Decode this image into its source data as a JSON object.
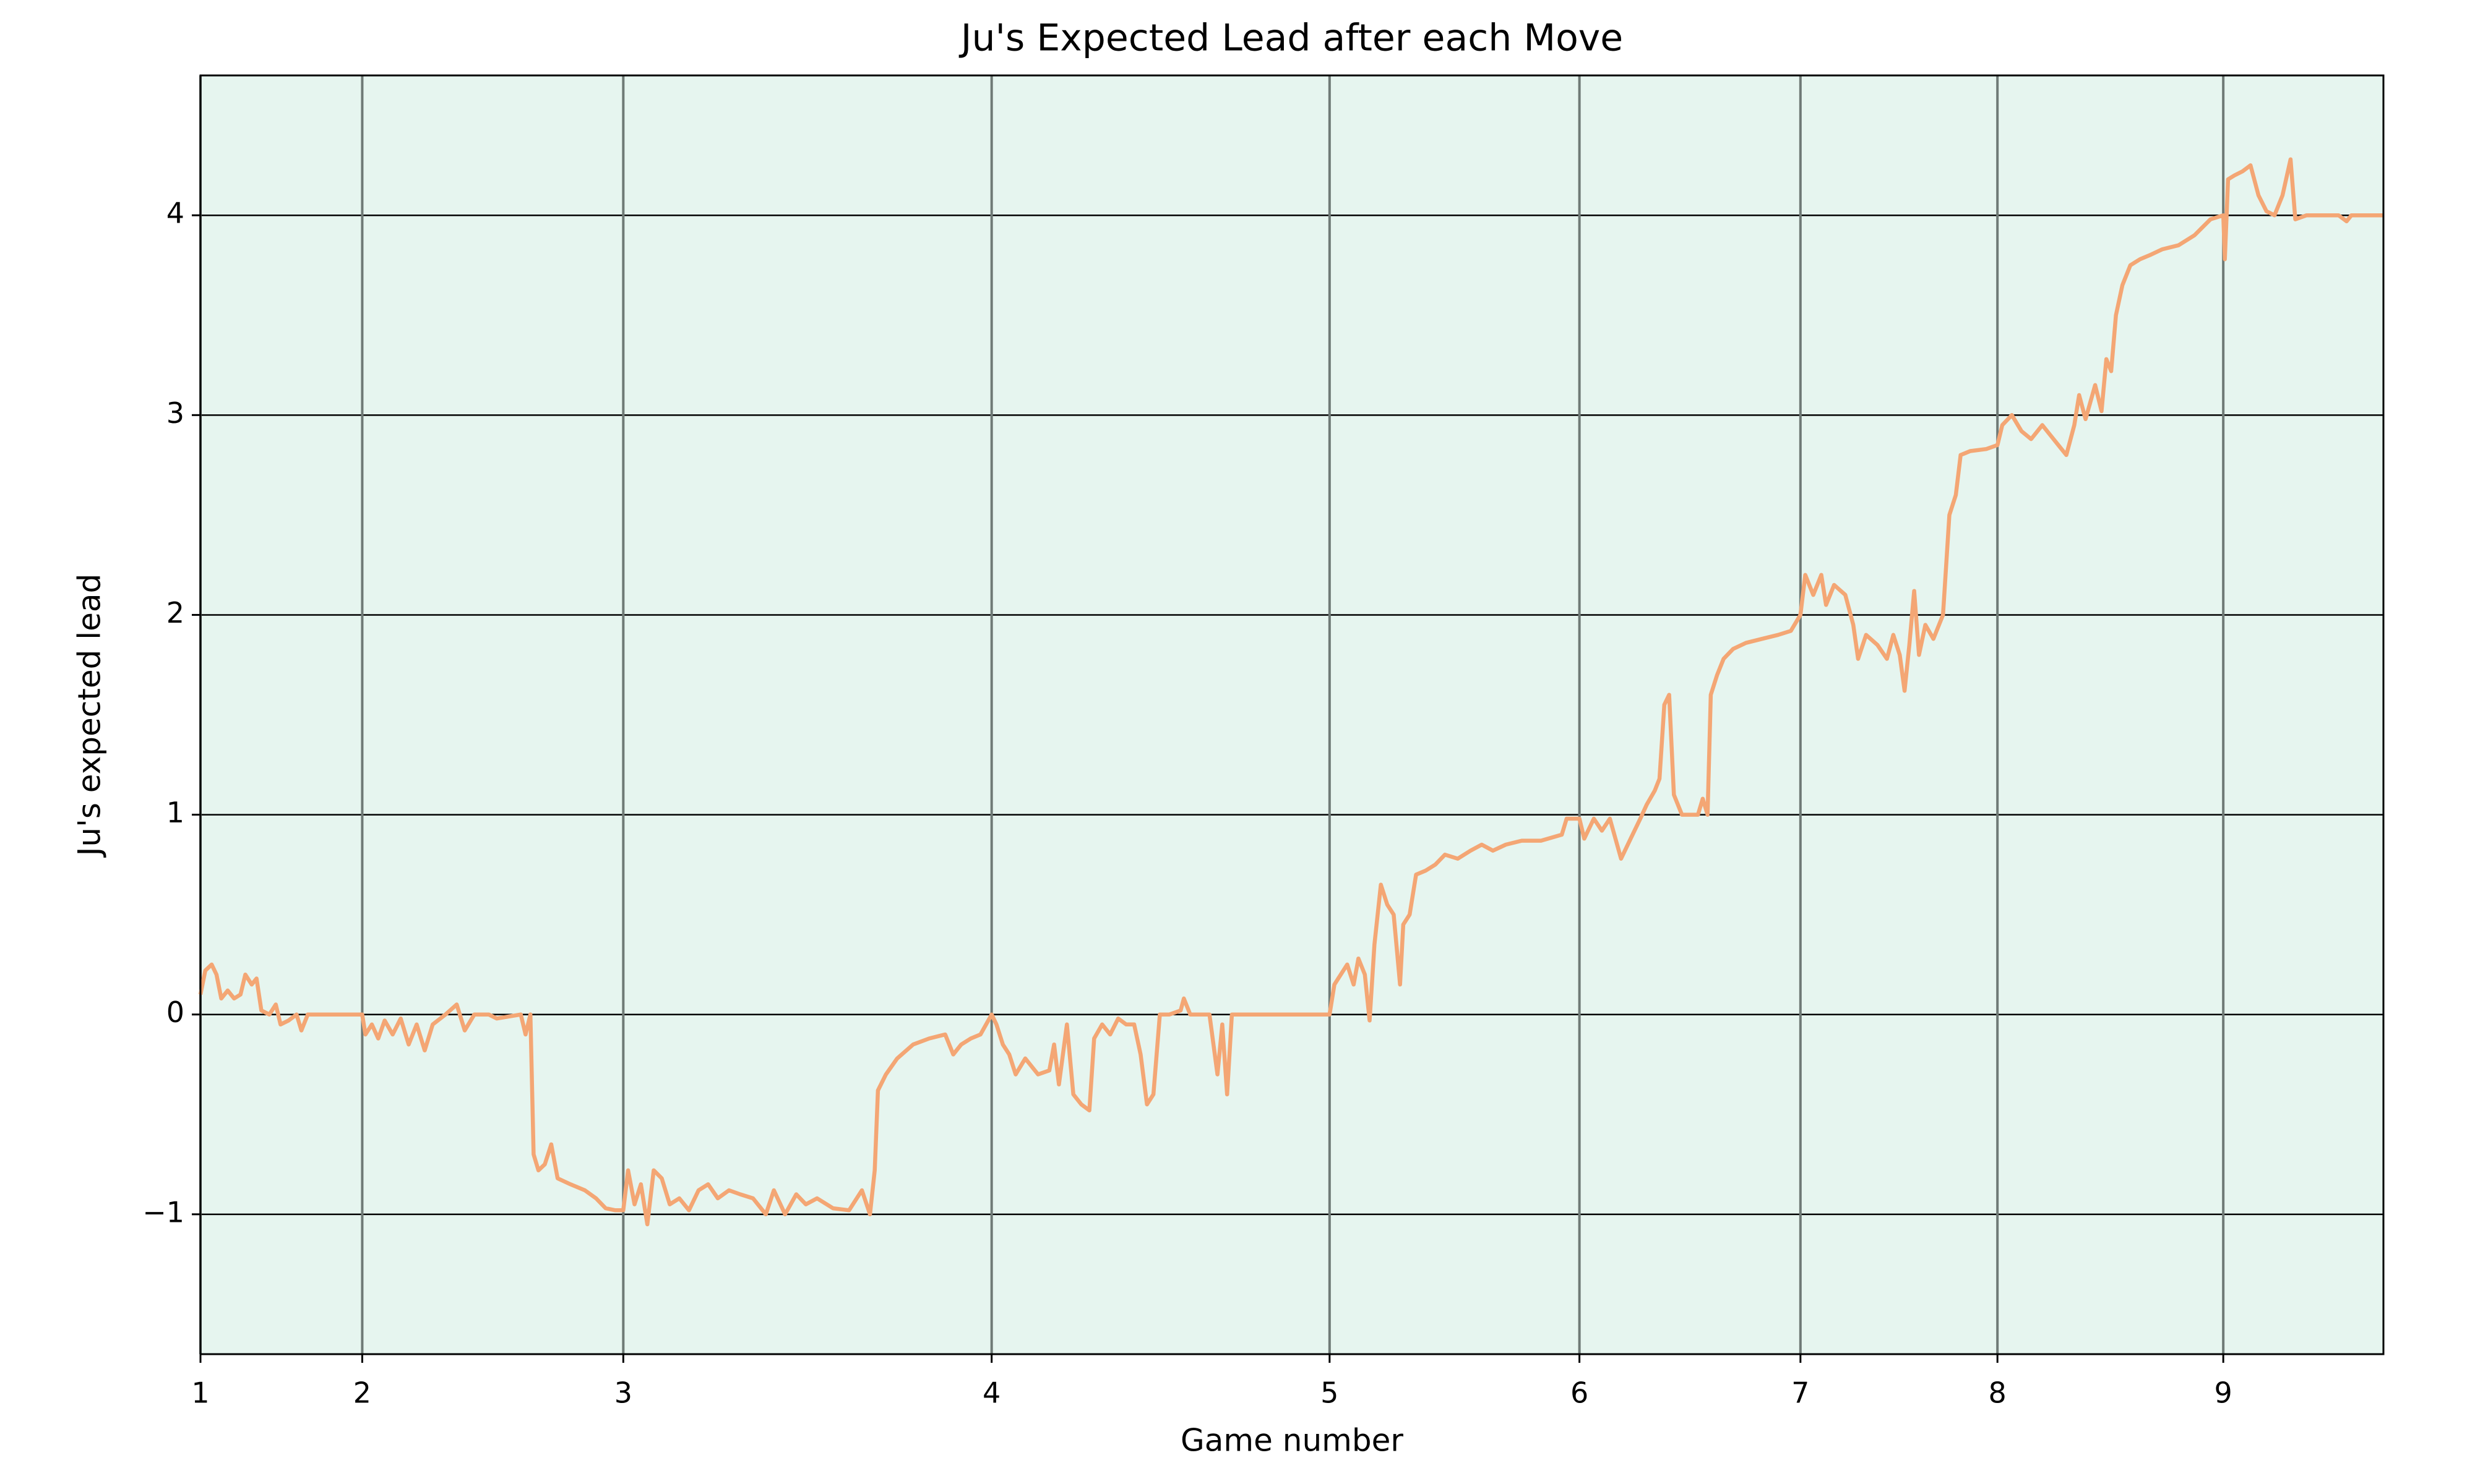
{
  "chart_data": {
    "type": "line",
    "title": "Ju's Expected Lead after each Move",
    "xlabel": "Game number",
    "ylabel": "Ju's expected lead",
    "color": "#f4a674",
    "background": "#e6f5ef",
    "grid": true,
    "xlim": [
      0,
      1363
    ],
    "ylim": [
      -1.7,
      4.7
    ],
    "xticks": [
      {
        "value": 0,
        "label": "1"
      },
      {
        "value": 101,
        "label": "2"
      },
      {
        "value": 264,
        "label": "3"
      },
      {
        "value": 494,
        "label": "4"
      },
      {
        "value": 705,
        "label": "5"
      },
      {
        "value": 861,
        "label": "6"
      },
      {
        "value": 999,
        "label": "7"
      },
      {
        "value": 1122,
        "label": "8"
      },
      {
        "value": 1263,
        "label": "9"
      }
    ],
    "yticks": [
      {
        "value": -1,
        "label": "−1"
      },
      0,
      1,
      2,
      3,
      4
    ],
    "x": [
      0,
      3,
      7,
      10,
      13,
      17,
      21,
      25,
      28,
      32,
      35,
      38,
      43,
      47,
      50,
      55,
      60,
      63,
      67,
      101,
      103,
      107,
      111,
      115,
      120,
      125,
      130,
      135,
      140,
      145,
      153,
      160,
      165,
      171,
      180,
      185,
      200,
      203,
      206,
      208,
      211,
      215,
      219,
      223,
      231,
      240,
      247,
      253,
      259,
      264,
      267,
      271,
      275,
      279,
      283,
      288,
      293,
      299,
      305,
      311,
      317,
      323,
      330,
      337,
      345,
      353,
      358,
      365,
      372,
      378,
      385,
      395,
      405,
      413,
      418,
      421,
      423,
      428,
      435,
      445,
      455,
      465,
      470,
      475,
      481,
      487,
      494,
      497,
      501,
      505,
      509,
      515,
      523,
      530,
      533,
      536,
      541,
      545,
      550,
      555,
      558,
      563,
      568,
      573,
      578,
      583,
      587,
      591,
      595,
      599,
      605,
      612,
      614,
      618,
      630,
      635,
      638,
      641,
      644,
      655,
      705,
      708,
      712,
      716,
      720,
      723,
      727,
      730,
      733,
      737,
      741,
      745,
      749,
      751,
      755,
      759,
      765,
      771,
      777,
      785,
      793,
      800,
      807,
      815,
      825,
      837,
      850,
      853,
      861,
      864,
      870,
      875,
      880,
      887,
      893,
      899,
      903,
      908,
      911,
      914,
      917,
      920,
      925,
      935,
      938,
      941,
      943,
      947,
      951,
      957,
      965,
      975,
      985,
      993,
      999,
      1002,
      1007,
      1012,
      1015,
      1020,
      1027,
      1032,
      1035,
      1040,
      1047,
      1053,
      1057,
      1061,
      1064,
      1067,
      1070,
      1073,
      1077,
      1082,
      1088,
      1092,
      1096,
      1099,
      1105,
      1115,
      1122,
      1125,
      1131,
      1137,
      1143,
      1150,
      1155,
      1160,
      1165,
      1170,
      1173,
      1177,
      1183,
      1187,
      1190,
      1193,
      1196,
      1200,
      1205,
      1211,
      1217,
      1225,
      1235,
      1245,
      1255,
      1263,
      1264,
      1266,
      1270,
      1275,
      1280,
      1285,
      1290,
      1295,
      1300,
      1305,
      1308,
      1315,
      1335,
      1340,
      1343,
      1363
    ],
    "values": [
      0.1,
      0.22,
      0.25,
      0.2,
      0.08,
      0.12,
      0.08,
      0.1,
      0.2,
      0.15,
      0.18,
      0.02,
      0,
      0.05,
      -0.05,
      -0.03,
      0,
      -0.08,
      0,
      0,
      -0.1,
      -0.05,
      -0.12,
      -0.03,
      -0.1,
      -0.02,
      -0.15,
      -0.05,
      -0.18,
      -0.05,
      0,
      0.05,
      -0.08,
      0,
      0,
      -0.02,
      0,
      -0.1,
      0,
      -0.7,
      -0.78,
      -0.75,
      -0.65,
      -0.82,
      -0.85,
      -0.88,
      -0.92,
      -0.97,
      -0.98,
      -0.98,
      -0.78,
      -0.95,
      -0.85,
      -1.05,
      -0.78,
      -0.82,
      -0.95,
      -0.92,
      -0.98,
      -0.88,
      -0.85,
      -0.92,
      -0.88,
      -0.9,
      -0.92,
      -1,
      -0.88,
      -1,
      -0.9,
      -0.95,
      -0.92,
      -0.97,
      -0.98,
      -0.88,
      -1,
      -0.78,
      -0.38,
      -0.3,
      -0.22,
      -0.15,
      -0.12,
      -0.1,
      -0.2,
      -0.15,
      -0.12,
      -0.1,
      0,
      -0.05,
      -0.15,
      -0.2,
      -0.3,
      -0.22,
      -0.3,
      -0.28,
      -0.15,
      -0.35,
      -0.05,
      -0.4,
      -0.45,
      -0.48,
      -0.12,
      -0.05,
      -0.1,
      -0.02,
      -0.05,
      -0.05,
      -0.2,
      -0.45,
      -0.4,
      0,
      0,
      0.02,
      0.08,
      0,
      0,
      -0.3,
      -0.05,
      -0.4,
      0,
      0,
      0,
      0.15,
      0.2,
      0.25,
      0.15,
      0.28,
      0.2,
      -0.03,
      0.35,
      0.65,
      0.55,
      0.5,
      0.15,
      0.45,
      0.5,
      0.7,
      0.72,
      0.75,
      0.8,
      0.78,
      0.82,
      0.85,
      0.82,
      0.85,
      0.87,
      0.87,
      0.9,
      0.98,
      0.98,
      0.88,
      0.98,
      0.92,
      0.98,
      0.78,
      0.88,
      0.98,
      1.05,
      1.12,
      1.18,
      1.55,
      1.6,
      1.1,
      1,
      1,
      1.08,
      1,
      1.6,
      1.7,
      1.78,
      1.83,
      1.86,
      1.88,
      1.9,
      1.92,
      2,
      2.2,
      2.1,
      2.2,
      2.05,
      2.15,
      2.1,
      1.95,
      1.78,
      1.9,
      1.85,
      1.78,
      1.9,
      1.8,
      1.62,
      1.85,
      2.12,
      1.8,
      1.95,
      1.88,
      2,
      2.5,
      2.6,
      2.8,
      2.82,
      2.83,
      2.85,
      2.95,
      3,
      2.92,
      2.88,
      2.95,
      2.9,
      2.85,
      2.8,
      2.95,
      3.1,
      2.98,
      3.15,
      3.02,
      3.28,
      3.22,
      3.5,
      3.65,
      3.75,
      3.78,
      3.8,
      3.83,
      3.85,
      3.9,
      3.98,
      4,
      3.78,
      4.18,
      4.2,
      4.22,
      4.25,
      4.1,
      4.02,
      4,
      4.1,
      4.28,
      3.98,
      4,
      4,
      3.97,
      4,
      4
    ]
  }
}
